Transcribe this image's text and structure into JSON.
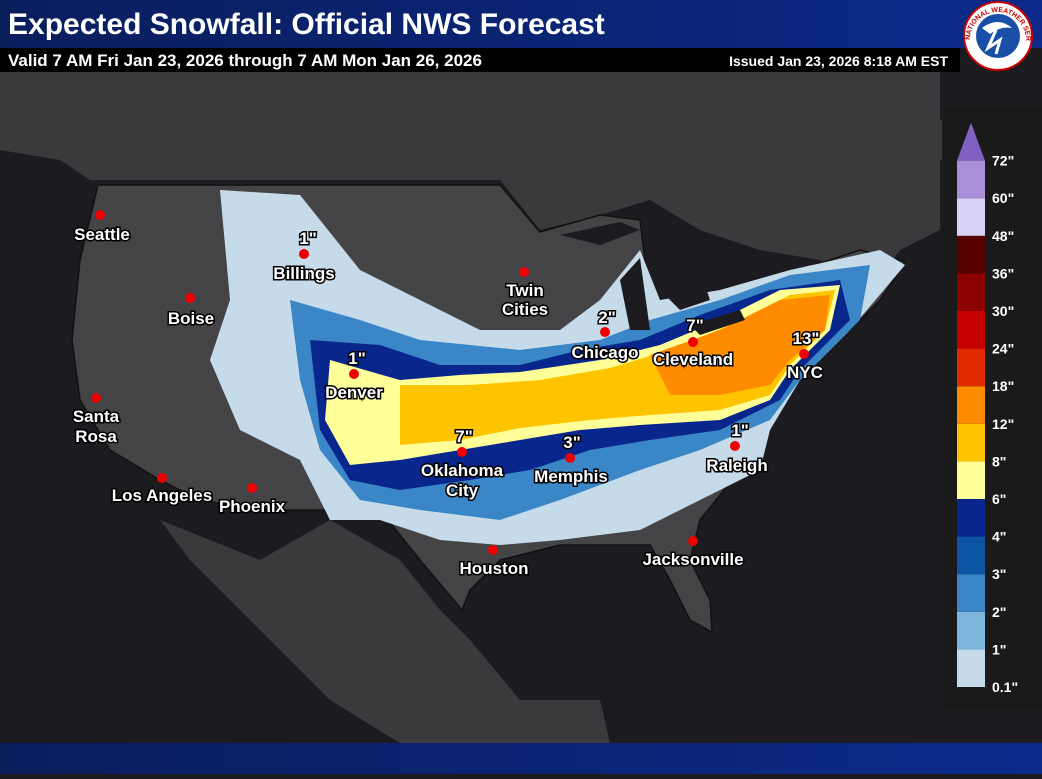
{
  "header": {
    "title": "Expected Snowfall: Official NWS Forecast",
    "valid": "Valid 7 AM Fri Jan 23, 2026 through 7 AM Mon Jan 26, 2026",
    "issued": "Issued Jan 23, 2026 8:18 AM EST",
    "logo": "NATIONAL WEATHER SERVICE"
  },
  "cities": [
    {
      "name": "Seattle"
    },
    {
      "name": "Billings",
      "amount": "1\""
    },
    {
      "name": "Boise"
    },
    {
      "lines": [
        "Twin",
        "Cities"
      ]
    },
    {
      "name": "Chicago",
      "amount": "2\""
    },
    {
      "name": "Cleveland",
      "amount": "7\""
    },
    {
      "name": "NYC",
      "amount": "13\""
    },
    {
      "name": "Denver",
      "amount": "1\""
    },
    {
      "lines": [
        "Santa",
        "Rosa"
      ]
    },
    {
      "lines": [
        "Oklahoma",
        "City"
      ],
      "amount": "7\""
    },
    {
      "name": "Memphis",
      "amount": "3\""
    },
    {
      "name": "Raleigh",
      "amount": "1\""
    },
    {
      "name": "Los Angeles"
    },
    {
      "name": "Phoenix"
    },
    {
      "name": "Houston"
    },
    {
      "name": "Jacksonville"
    }
  ],
  "legend": {
    "levels": [
      {
        "label": "0.1\"",
        "color": "#c6dbe9"
      },
      {
        "label": "1\"",
        "color": "#7db6df"
      },
      {
        "label": "2\"",
        "color": "#3a86c6"
      },
      {
        "label": "3\"",
        "color": "#0b55a3"
      },
      {
        "label": "4\"",
        "color": "#08268c"
      },
      {
        "label": "6\"",
        "color": "#ffff99"
      },
      {
        "label": "8\"",
        "color": "#ffc400"
      },
      {
        "label": "12\"",
        "color": "#ff8c00"
      },
      {
        "label": "18\"",
        "color": "#e22a00"
      },
      {
        "label": "24\"",
        "color": "#c40000"
      },
      {
        "label": "30\"",
        "color": "#8b0000"
      },
      {
        "label": "36\"",
        "color": "#560000"
      },
      {
        "label": "48\"",
        "color": "#d9d2f7"
      },
      {
        "label": "60\"",
        "color": "#a98fd8"
      },
      {
        "label": "72\"",
        "color": "#8060c0"
      }
    ]
  }
}
